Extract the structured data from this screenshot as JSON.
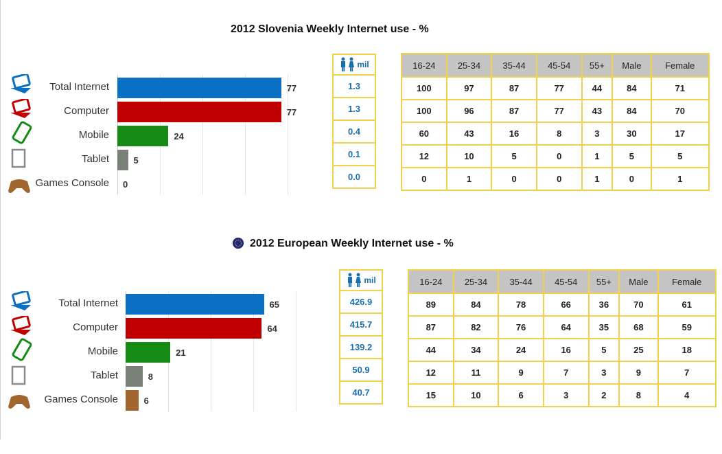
{
  "colors": {
    "total_internet": "#0b6fc3",
    "computer": "#c00000",
    "mobile": "#158a15",
    "tablet": "#788078",
    "games_console": "#a0662e",
    "table_border": "#f2d24a",
    "mil_text": "#1a6fae",
    "header_bg": "#c4c4c4"
  },
  "icons": [
    "laptop-icon",
    "laptop-icon",
    "smartphone-icon",
    "tablet-icon",
    "gamepad-icon",
    "people-icon",
    "eu-flag-icon"
  ],
  "slovenia": {
    "title": "2012 Slovenia Weekly Internet use  - %",
    "mil_label": "mil",
    "mil_values": [
      "1.3",
      "1.3",
      "0.4",
      "0.1",
      "0.0"
    ],
    "table_headers": [
      "16-24",
      "25-34",
      "35-44",
      "45-54",
      "55+",
      "Male",
      "Female"
    ],
    "table_rows": [
      [
        "100",
        "97",
        "87",
        "77",
        "44",
        "84",
        "71"
      ],
      [
        "100",
        "96",
        "87",
        "77",
        "43",
        "84",
        "70"
      ],
      [
        "60",
        "43",
        "16",
        "8",
        "3",
        "30",
        "17"
      ],
      [
        "12",
        "10",
        "5",
        "0",
        "1",
        "5",
        "5"
      ],
      [
        "0",
        "1",
        "0",
        "0",
        "1",
        "0",
        "1"
      ]
    ]
  },
  "europe": {
    "title": "2012 European Weekly Internet use  - %",
    "mil_label": "mil",
    "mil_values": [
      "426.9",
      "415.7",
      "139.2",
      "50.9",
      "40.7"
    ],
    "table_headers": [
      "16-24",
      "25-34",
      "35-44",
      "45-54",
      "55+",
      "Male",
      "Female"
    ],
    "table_rows": [
      [
        "89",
        "84",
        "78",
        "66",
        "36",
        "70",
        "61"
      ],
      [
        "87",
        "82",
        "76",
        "64",
        "35",
        "68",
        "59"
      ],
      [
        "44",
        "34",
        "24",
        "16",
        "5",
        "25",
        "18"
      ],
      [
        "12",
        "11",
        "9",
        "7",
        "3",
        "9",
        "7"
      ],
      [
        "15",
        "10",
        "6",
        "3",
        "2",
        "8",
        "4"
      ]
    ]
  },
  "chart_data": [
    {
      "type": "bar",
      "orientation": "horizontal",
      "title": "2012 Slovenia Weekly Internet use  - %",
      "categories": [
        "Total Internet",
        "Computer",
        "Mobile",
        "Tablet",
        "Games Console"
      ],
      "values": [
        77,
        77,
        24,
        5,
        0
      ],
      "xlim": [
        0,
        80
      ],
      "grid": true
    },
    {
      "type": "bar",
      "orientation": "horizontal",
      "title": "2012 European Weekly Internet use  - %",
      "categories": [
        "Total Internet",
        "Computer",
        "Mobile",
        "Tablet",
        "Games Console"
      ],
      "values": [
        65,
        64,
        21,
        8,
        6
      ],
      "xlim": [
        0,
        80
      ],
      "grid": true
    }
  ]
}
